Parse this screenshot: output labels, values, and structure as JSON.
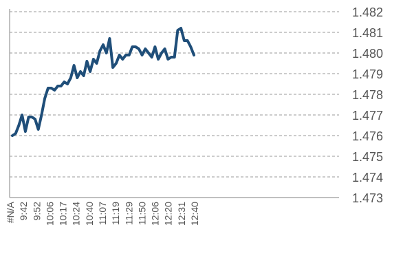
{
  "chart_data": {
    "type": "line",
    "title": "",
    "xlabel": "",
    "ylabel": "",
    "ylim": [
      1.473,
      1.482
    ],
    "yticks": [
      "1.482",
      "1.481",
      "1.480",
      "1.479",
      "1.478",
      "1.477",
      "1.476",
      "1.475",
      "1.474",
      "1.473"
    ],
    "xticks": [
      "#N/A",
      "9:42",
      "9:52",
      "10:06",
      "10:17",
      "10:24",
      "10:40",
      "11:07",
      "11:19",
      "11:29",
      "11:50",
      "12:06",
      "12:20",
      "12:31",
      "12:40"
    ],
    "grid": true,
    "legend": "none",
    "color": "#1f4e79",
    "series": [
      {
        "values": [
          1.476,
          1.4761,
          1.4765,
          1.477,
          1.4762,
          1.4769,
          1.4769,
          1.4768,
          1.4763,
          1.477,
          1.4778,
          1.4783,
          1.4783,
          1.4782,
          1.4784,
          1.4784,
          1.4786,
          1.4785,
          1.4788,
          1.4794,
          1.4788,
          1.4791,
          1.4789,
          1.4796,
          1.4791,
          1.4797,
          1.4795,
          1.4801,
          1.4804,
          1.48,
          1.4807,
          1.4793,
          1.4795,
          1.4799,
          1.4797,
          1.4799,
          1.4799,
          1.4803,
          1.4803,
          1.4802,
          1.4799,
          1.4802,
          1.48,
          1.4798,
          1.4803,
          1.4797,
          1.48,
          1.4802,
          1.4797,
          1.4798,
          1.4798,
          1.4811,
          1.4812,
          1.4806,
          1.4806,
          1.4803,
          1.4799
        ]
      }
    ]
  }
}
